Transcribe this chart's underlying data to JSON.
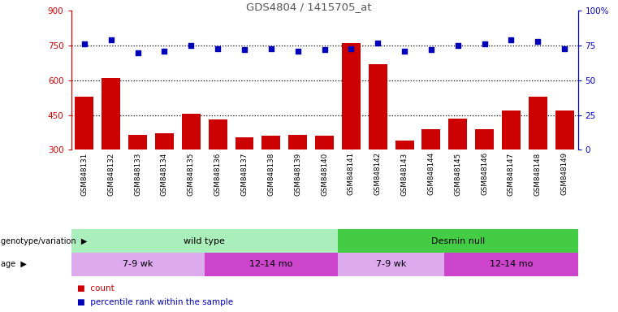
{
  "title": "GDS4804 / 1415705_at",
  "samples": [
    "GSM848131",
    "GSM848132",
    "GSM848133",
    "GSM848134",
    "GSM848135",
    "GSM848136",
    "GSM848137",
    "GSM848138",
    "GSM848139",
    "GSM848140",
    "GSM848141",
    "GSM848142",
    "GSM848143",
    "GSM848144",
    "GSM848145",
    "GSM848146",
    "GSM848147",
    "GSM848148",
    "GSM848149"
  ],
  "counts": [
    530,
    610,
    365,
    370,
    455,
    430,
    355,
    360,
    365,
    360,
    760,
    670,
    340,
    390,
    435,
    390,
    470,
    530,
    470
  ],
  "pct_ranks": [
    76,
    79,
    70,
    71,
    75,
    73,
    72,
    73,
    71,
    72,
    73,
    77,
    71,
    72,
    75,
    76,
    79,
    78,
    73
  ],
  "ylim_left": [
    300,
    900
  ],
  "ylim_right": [
    0,
    100
  ],
  "yticks_left": [
    300,
    450,
    600,
    750,
    900
  ],
  "yticks_right": [
    0,
    25,
    50,
    75,
    100
  ],
  "hlines": [
    450,
    600,
    750
  ],
  "bar_color": "#cc0000",
  "dot_color": "#0000bb",
  "title_color": "#555555",
  "left_axis_color": "#cc0000",
  "right_axis_color": "#0000bb",
  "group1_label": "wild type",
  "group2_label": "Desmin null",
  "group1_color": "#aaeebb",
  "group2_color": "#44cc44",
  "age1_label": "7-9 wk",
  "age2_label": "12-14 mo",
  "age3_label": "7-9 wk",
  "age4_label": "12-14 mo",
  "age_light_color": "#ddaaee",
  "age_dark_color": "#cc44cc",
  "genotype_label": "genotype/variation",
  "age_label": "age",
  "legend_count": "count",
  "legend_pct": "percentile rank within the sample",
  "wt_count": 10,
  "desmin_count": 9,
  "xtick_bg_color": "#cccccc",
  "plot_bg_color": "#ffffff"
}
